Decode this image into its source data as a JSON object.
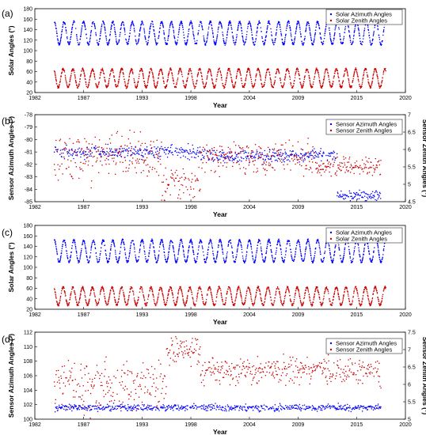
{
  "figure": {
    "panels": [
      {
        "label": "(a)",
        "xlabel": "Year",
        "ylabel_left": "Solar Angles (°)",
        "ylabel_right": "",
        "legend": [
          "Solar Azimuth Angles",
          "Solar Zenith Angles"
        ],
        "y_ticks": [
          "20",
          "40",
          "60",
          "80",
          "100",
          "120",
          "140",
          "160",
          "180"
        ],
        "y2_ticks": []
      },
      {
        "label": "(b)",
        "xlabel": "Year",
        "ylabel_left": "Sensor Azimuth Angles (°)",
        "ylabel_right": "Sensor Zenith Angles (°)",
        "legend": [
          "Sensor Azimuth Angles",
          "Sensor Zenith Angles"
        ],
        "y_ticks": [
          "-85",
          "-84",
          "-83",
          "-82",
          "-81",
          "-80",
          "-79",
          "-78"
        ],
        "y2_ticks": [
          "4.5",
          "5",
          "5.5",
          "6",
          "6.5",
          "7"
        ]
      },
      {
        "label": "(c)",
        "xlabel": "Year",
        "ylabel_left": "Solar Angles (°)",
        "ylabel_right": "",
        "legend": [
          "Solar Azimuth Angles",
          "Solar Zenith Angles"
        ],
        "y_ticks": [
          "20",
          "40",
          "60",
          "80",
          "100",
          "120",
          "140",
          "160",
          "180"
        ],
        "y2_ticks": []
      },
      {
        "label": "(d)",
        "xlabel": "Year",
        "ylabel_left": "Sensor Azimuth Angles (°)",
        "ylabel_right": "Sensor Zenith Angles (°)",
        "legend": [
          "Sensor Azimuth Angles",
          "Sensor Zenith Angles"
        ],
        "y_ticks": [
          "100",
          "102",
          "104",
          "106",
          "108",
          "110",
          "112"
        ],
        "y2_ticks": [
          "5",
          "5.5",
          "6",
          "6.5",
          "7",
          "7.5"
        ]
      }
    ],
    "x_ticks": [
      "1982",
      "1987",
      "1993",
      "1998",
      "2004",
      "2009",
      "2015",
      "2020"
    ]
  },
  "chart_data": [
    {
      "type": "scatter",
      "xlim": [
        1982,
        2020
      ],
      "ylim": [
        20,
        180
      ],
      "series": [
        {
          "name": "Solar Azimuth Angles",
          "color": "#0000ff",
          "oscillation": {
            "start": 1984.0,
            "end": 2018.0,
            "min": 112,
            "max": 155,
            "period_years": 1
          }
        },
        {
          "name": "Solar Zenith Angles",
          "color": "#cc0000",
          "oscillation": {
            "start": 1984.0,
            "end": 2018.0,
            "min": 30,
            "max": 65,
            "period_years": 1
          }
        }
      ],
      "legend_position": "top-right",
      "grid": false
    },
    {
      "type": "scatter",
      "xlim": [
        1982,
        2020
      ],
      "ylim": [
        -85,
        -78
      ],
      "y2lim": [
        4.5,
        7
      ],
      "series": [
        {
          "name": "Sensor Azimuth Angles",
          "color": "#0000ff",
          "segments": [
            {
              "x": [
                1984.0,
                1999.0
              ],
              "y": -81.0,
              "spread": 0.4
            },
            {
              "x": [
                1999.0,
                2013.0
              ],
              "y": -81.3,
              "spread": 0.4
            },
            {
              "x": [
                2013.0,
                2017.5
              ],
              "y": -84.5,
              "spread": 0.3
            }
          ]
        },
        {
          "name": "Sensor Zenith Angles",
          "color": "#cc0000",
          "axis": "right",
          "segments": [
            {
              "x": [
                1984.0,
                1995.0
              ],
              "y": 5.8,
              "spread": 0.5
            },
            {
              "x": [
                1995.0,
                1999.0
              ],
              "y": 5.0,
              "spread": 0.4
            },
            {
              "x": [
                1999.0,
                2011.0
              ],
              "y": 5.8,
              "spread": 0.35
            },
            {
              "x": [
                2011.0,
                2017.5
              ],
              "y": 5.5,
              "spread": 0.2
            }
          ]
        }
      ],
      "legend_position": "top-right",
      "grid": false
    },
    {
      "type": "scatter",
      "xlim": [
        1982,
        2020
      ],
      "ylim": [
        20,
        180
      ],
      "series": [
        {
          "name": "Solar Azimuth Angles",
          "color": "#0000ff",
          "oscillation": {
            "start": 1984.0,
            "end": 2018.0,
            "min": 110,
            "max": 152,
            "period_years": 1
          }
        },
        {
          "name": "Solar Zenith Angles",
          "color": "#cc0000",
          "oscillation": {
            "start": 1984.0,
            "end": 2018.0,
            "min": 28,
            "max": 62,
            "period_years": 1
          }
        }
      ],
      "legend_position": "top-right",
      "grid": false
    },
    {
      "type": "scatter",
      "xlim": [
        1982,
        2020
      ],
      "ylim": [
        100,
        112
      ],
      "y2lim": [
        5,
        7.5
      ],
      "series": [
        {
          "name": "Sensor Azimuth Angles",
          "color": "#0000ff",
          "segments": [
            {
              "x": [
                1984.0,
                2017.5
              ],
              "y": 101.6,
              "spread": 0.35
            }
          ]
        },
        {
          "name": "Sensor Zenith Angles",
          "color": "#cc0000",
          "axis": "right",
          "segments": [
            {
              "x": [
                1984.0,
                1995.5
              ],
              "y": 6.0,
              "spread": 0.55
            },
            {
              "x": [
                1995.5,
                1999.0
              ],
              "y": 7.0,
              "spread": 0.3
            },
            {
              "x": [
                1999.0,
                2017.5
              ],
              "y": 6.4,
              "spread": 0.3
            }
          ]
        }
      ],
      "legend_position": "top-right",
      "grid": false
    }
  ]
}
